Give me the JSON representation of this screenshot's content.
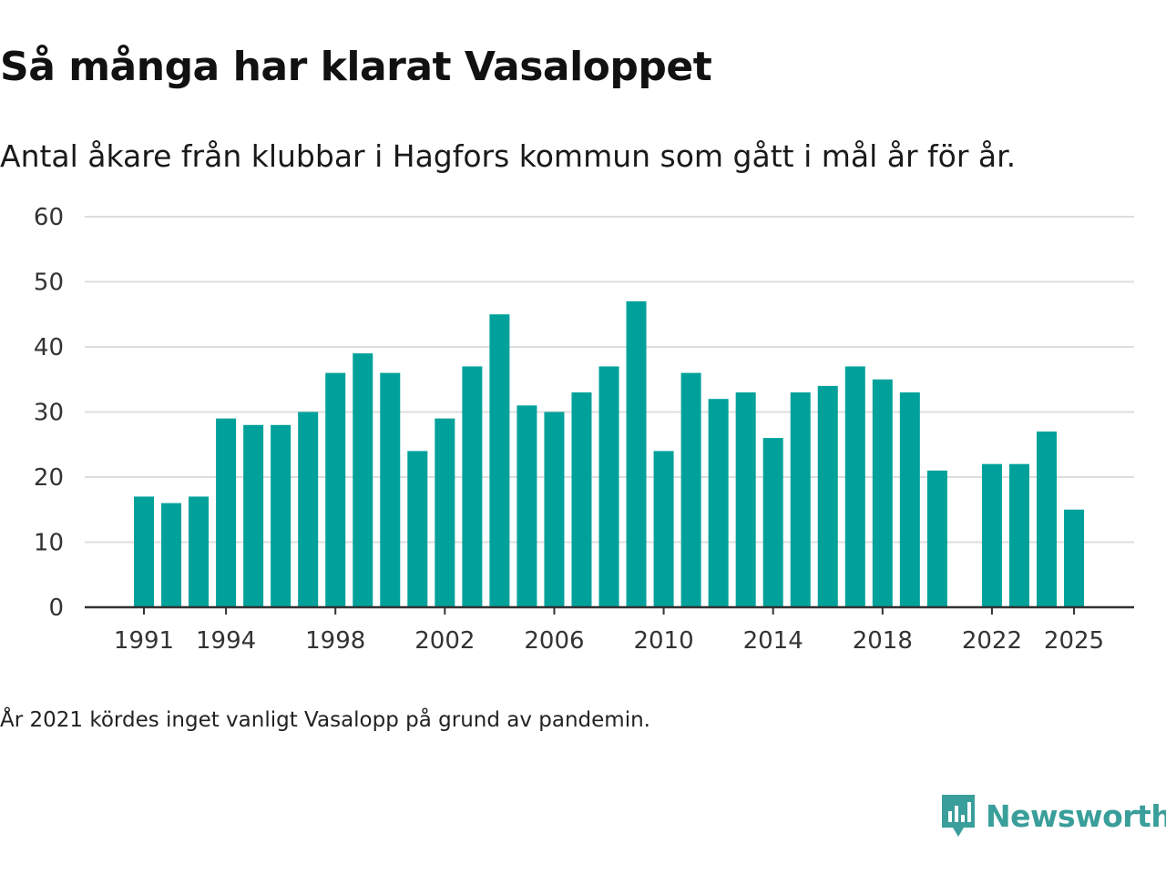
{
  "header": {
    "title": "Så många har klarat Vasaloppet",
    "subtitle": "Antal åkare från klubbar i Hagfors kommun som gått i mål år för år."
  },
  "footer": {
    "note": "År 2021 kördes inget vanligt Vasalopp på grund av pandemin.",
    "brand": "Newsworthy",
    "brand_icon": "newsworthy-logo-icon"
  },
  "colors": {
    "bar": "#00a19a",
    "grid": "#dddddd",
    "axis": "#333333",
    "tick_text": "#333333",
    "brand": "#3a9e9a"
  },
  "chart_data": {
    "type": "bar",
    "categories": [
      1991,
      1992,
      1993,
      1994,
      1995,
      1996,
      1997,
      1998,
      1999,
      2000,
      2001,
      2002,
      2003,
      2004,
      2005,
      2006,
      2007,
      2008,
      2009,
      2010,
      2011,
      2012,
      2013,
      2014,
      2015,
      2016,
      2017,
      2018,
      2019,
      2020,
      2021,
      2022,
      2023,
      2024,
      2025
    ],
    "values": [
      17,
      16,
      17,
      29,
      28,
      28,
      30,
      36,
      39,
      36,
      24,
      29,
      37,
      45,
      31,
      30,
      33,
      37,
      47,
      24,
      36,
      32,
      33,
      26,
      33,
      34,
      37,
      35,
      33,
      21,
      null,
      22,
      22,
      27,
      15
    ],
    "x_tick_labels": [
      "1991",
      "1994",
      "1998",
      "2002",
      "2006",
      "2010",
      "2014",
      "2018",
      "2022",
      "2025"
    ],
    "y_ticks": [
      0,
      10,
      20,
      30,
      40,
      50,
      60
    ],
    "ylim": [
      0,
      60
    ],
    "grid": true,
    "xlabel": "",
    "ylabel": ""
  }
}
